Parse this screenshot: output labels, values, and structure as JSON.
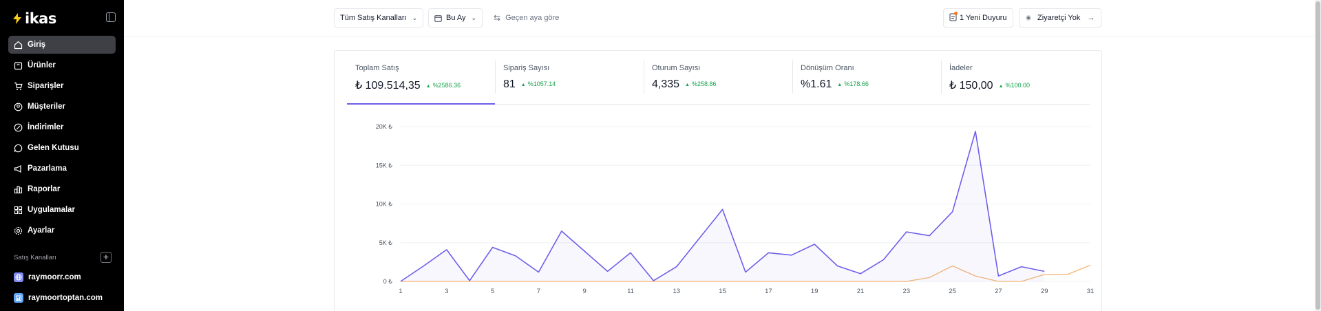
{
  "brand": {
    "name": "ikas"
  },
  "sidebar": {
    "items": [
      {
        "label": "Giriş",
        "icon": "home-icon",
        "active": true
      },
      {
        "label": "Ürünler",
        "icon": "box-icon"
      },
      {
        "label": "Siparişler",
        "icon": "cart-icon"
      },
      {
        "label": "Müşteriler",
        "icon": "user-icon"
      },
      {
        "label": "İndirimler",
        "icon": "discount-icon"
      },
      {
        "label": "Gelen Kutusu",
        "icon": "chat-icon"
      },
      {
        "label": "Pazarlama",
        "icon": "megaphone-icon"
      },
      {
        "label": "Raporlar",
        "icon": "chart-icon"
      },
      {
        "label": "Uygulamalar",
        "icon": "apps-icon"
      },
      {
        "label": "Ayarlar",
        "icon": "gear-icon"
      }
    ],
    "channels_title": "Satış Kanalları",
    "channels": [
      {
        "label": "raymoorr.com",
        "icon": "globe-icon"
      },
      {
        "label": "raymoortoptan.com",
        "icon": "store-icon"
      }
    ]
  },
  "topbar": {
    "channel_filter": "Tüm Satış Kanalları",
    "date_filter": "Bu Ay",
    "compare": "Geçen aya göre",
    "announcement": "1 Yeni Duyuru",
    "visitors": "Ziyaretçi Yok"
  },
  "metrics": [
    {
      "label": "Toplam Satış",
      "value": "₺ 109.514,35",
      "delta": "%2586.36",
      "active": true
    },
    {
      "label": "Sipariş Sayısı",
      "value": "81",
      "delta": "%1057.14"
    },
    {
      "label": "Oturum Sayısı",
      "value": "4,335",
      "delta": "%258.86"
    },
    {
      "label": "Dönüşüm Oranı",
      "value": "%1.61",
      "delta": "%178.66"
    },
    {
      "label": "İadeler",
      "value": "₺ 150,00",
      "delta": "%100.00"
    }
  ],
  "colors": {
    "current": "#6d5fe8",
    "previous": "#f5b66f",
    "positive": "#16a34a"
  },
  "chart_data": {
    "type": "line",
    "y_tick_labels": [
      "0 ₺",
      "5K ₺",
      "10K ₺",
      "15K ₺",
      "20K ₺"
    ],
    "y_ticks": [
      0,
      5000,
      10000,
      15000,
      20000
    ],
    "ylim": [
      0,
      20000
    ],
    "x_tick_labels": [
      "1",
      "3",
      "5",
      "7",
      "9",
      "11",
      "13",
      "15",
      "17",
      "19",
      "21",
      "23",
      "25",
      "27",
      "29",
      "31"
    ],
    "xlim": [
      1,
      31
    ],
    "grid": true,
    "series": [
      {
        "x": [
          1,
          2,
          3,
          4,
          5,
          6,
          7,
          8,
          9,
          10,
          11,
          12,
          13,
          14,
          15,
          16,
          17,
          18,
          19,
          20,
          21,
          22,
          23,
          24,
          25,
          26,
          27,
          28,
          29
        ],
        "values": [
          0,
          2000,
          4100,
          100,
          4400,
          3300,
          1200,
          6500,
          3900,
          1300,
          3700,
          100,
          1900,
          5600,
          9300,
          1200,
          3700,
          3400,
          4800,
          2000,
          1000,
          2800,
          6400,
          5900,
          9000,
          19400,
          700,
          1900,
          1300
        ],
        "fill": true
      },
      {
        "x": [
          1,
          2,
          3,
          4,
          5,
          6,
          7,
          8,
          9,
          10,
          11,
          12,
          13,
          14,
          15,
          16,
          17,
          18,
          19,
          20,
          21,
          22,
          23,
          24,
          25,
          26,
          27,
          28,
          29,
          30,
          31
        ],
        "values": [
          0,
          0,
          0,
          0,
          0,
          0,
          0,
          0,
          0,
          0,
          0,
          0,
          0,
          0,
          0,
          0,
          0,
          0,
          0,
          0,
          0,
          0,
          0,
          500,
          2000,
          700,
          0,
          0,
          900,
          900,
          2100
        ]
      }
    ]
  }
}
